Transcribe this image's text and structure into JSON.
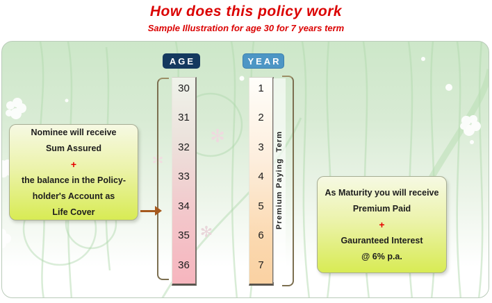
{
  "header": {
    "title": "How does this policy work",
    "subtitle": "Sample Illustration for age 30 for 7 years term"
  },
  "diagram": {
    "age_column": {
      "label": "AGE",
      "values": [
        "30",
        "31",
        "32",
        "33",
        "34",
        "35",
        "36"
      ]
    },
    "year_column": {
      "label": "YEAR",
      "values": [
        "1",
        "2",
        "3",
        "4",
        "5",
        "6",
        "7"
      ]
    },
    "premium_term_label": "Premium Paying  Term",
    "left_callout": {
      "lines": [
        "Nominee will receive",
        "Sum Assured",
        "+",
        "the balance in the Policy-",
        "holder's Account as",
        "Life Cover"
      ]
    },
    "right_callout": {
      "lines": [
        "As Maturity you will receive",
        "Premium Paid",
        "+",
        "Gauranteed Interest",
        "@ 6% p.a."
      ]
    }
  },
  "colors": {
    "title_red": "#db0202",
    "plus_red": "#e60000",
    "age_header_bg": "#14395f",
    "year_header_bg": "#4d96c5",
    "age_gradient_top": "#eff3ea",
    "age_gradient_bottom": "#f6b5be",
    "year_gradient_top": "#fffefa",
    "year_gradient_bottom": "#fad1a2",
    "callout_gradient_top": "#f6f9e3",
    "callout_gradient_bottom": "#d8eb54",
    "arrow_brown": "#a5591d",
    "panel_green": "#cde7c9"
  }
}
